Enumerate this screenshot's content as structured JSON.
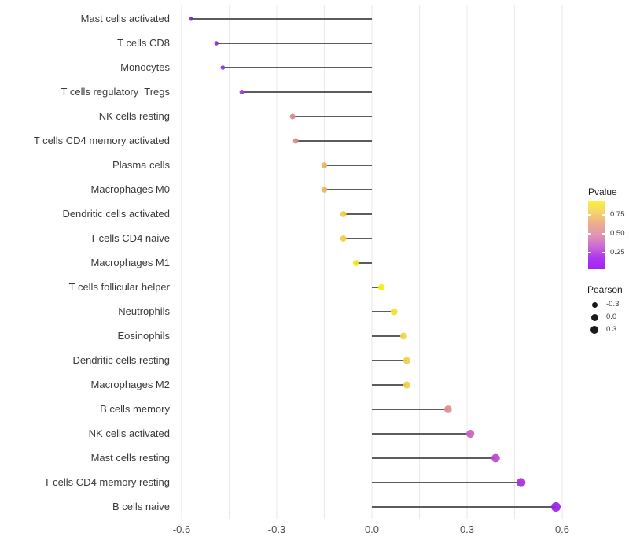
{
  "chart_data": {
    "type": "scatter",
    "subtype": "lollipop",
    "title": "",
    "xlabel": "",
    "ylabel": "",
    "x_ticks": [
      "-0.6",
      "-0.3",
      "0.0",
      "0.3",
      "0.6"
    ],
    "x_tick_values": [
      -0.6,
      -0.3,
      0.0,
      0.3,
      0.6
    ],
    "x_minor_values": [
      -0.45,
      -0.15,
      0.15,
      0.45
    ],
    "xlim": [
      -0.625,
      0.635
    ],
    "grid": "vertical-only, light gray, white background",
    "legend_position": "right",
    "size_encoding": "Pearson correlation",
    "color_encoding": "Pvalue",
    "rows": [
      {
        "label": "Mast cells activated",
        "pearson": -0.57,
        "color": "#7E22D0"
      },
      {
        "label": "T cells CD8",
        "pearson": -0.49,
        "color": "#8C2BD1"
      },
      {
        "label": "Monocytes",
        "pearson": -0.47,
        "color": "#9130D2"
      },
      {
        "label": "T cells regulatory  Tregs",
        "pearson": -0.41,
        "color": "#A23CCD"
      },
      {
        "label": "NK cells resting",
        "pearson": -0.25,
        "color": "#D9898F"
      },
      {
        "label": "T cells CD4 memory activated",
        "pearson": -0.24,
        "color": "#D9888E"
      },
      {
        "label": "Plasma cells",
        "pearson": -0.15,
        "color": "#EBB366"
      },
      {
        "label": "Macrophages M0",
        "pearson": -0.15,
        "color": "#EBB264"
      },
      {
        "label": "Dendritic cells activated",
        "pearson": -0.09,
        "color": "#EFD03C"
      },
      {
        "label": "T cells CD4 naive",
        "pearson": -0.09,
        "color": "#EFD03D"
      },
      {
        "label": "Macrophages M1",
        "pearson": -0.05,
        "color": "#F5E722"
      },
      {
        "label": "T cells follicular helper",
        "pearson": 0.03,
        "color": "#F8EC15"
      },
      {
        "label": "Neutrophils",
        "pearson": 0.07,
        "color": "#F4E22C"
      },
      {
        "label": "Eosinophils",
        "pearson": 0.1,
        "color": "#F1D547"
      },
      {
        "label": "Dendritic cells resting",
        "pearson": 0.11,
        "color": "#EFD046"
      },
      {
        "label": "Macrophages M2",
        "pearson": 0.11,
        "color": "#EFCF45"
      },
      {
        "label": "B cells memory",
        "pearson": 0.24,
        "color": "#DF8D8A"
      },
      {
        "label": "NK cells activated",
        "pearson": 0.31,
        "color": "#C763BE"
      },
      {
        "label": "Mast cells resting",
        "pearson": 0.39,
        "color": "#BB46CE"
      },
      {
        "label": "T cells CD4 memory resting",
        "pearson": 0.47,
        "color": "#A52FDB"
      },
      {
        "label": "B cells naive",
        "pearson": 0.58,
        "color": "#9A1FE8"
      }
    ]
  },
  "legend": {
    "pvalue": {
      "title": "Pvalue",
      "tick_labels": [
        "0.75",
        "0.50",
        "0.25"
      ],
      "gradient_stops": [
        "#FBF13C",
        "#F6D468",
        "#EDAD8E",
        "#E294B2",
        "#CC6BD4",
        "#AE36EE",
        "#A124F6"
      ]
    },
    "pearson": {
      "title": "Pearson",
      "items": [
        {
          "label": "-0.3",
          "size": 7
        },
        {
          "label": "0.0",
          "size": 9
        },
        {
          "label": "0.3",
          "size": 10.5
        }
      ]
    }
  },
  "style": {
    "stem_color": "#5C5C5C",
    "grid_color": "#E9E9E9",
    "background": "#FFFFFF"
  }
}
